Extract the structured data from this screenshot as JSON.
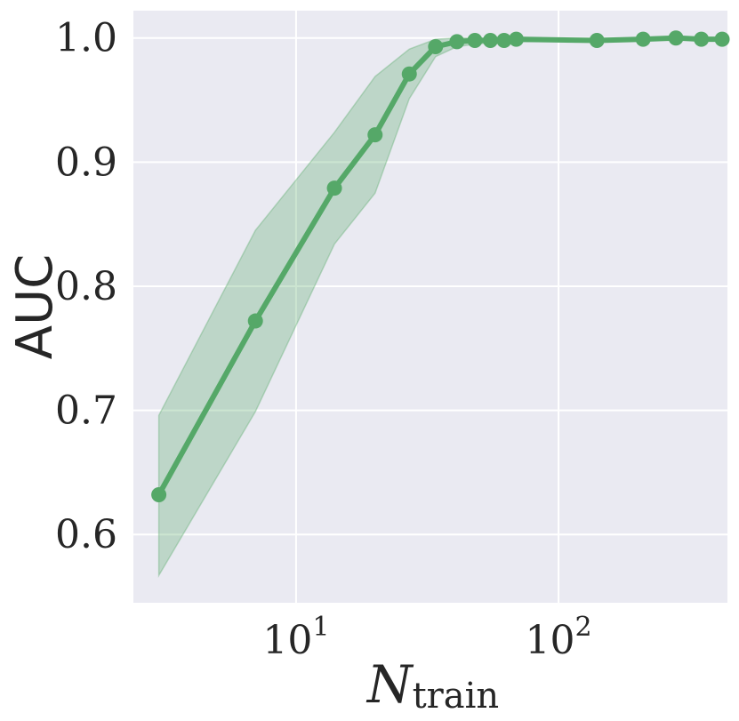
{
  "chart_data": {
    "type": "line",
    "title": "",
    "xlabel": "N",
    "xlabel_subscript": "train",
    "ylabel": "AUC",
    "xscale": "log",
    "xlim": [
      2.4,
      440
    ],
    "ylim": [
      0.545,
      1.022
    ],
    "grid": true,
    "legend": "none",
    "colors": {
      "background": "#eaeaf2",
      "grid": "#ffffff",
      "line": "#55a868",
      "band": "#55a868"
    },
    "x_ticks": [
      {
        "base": "10",
        "exp": "1",
        "value": 10
      },
      {
        "base": "10",
        "exp": "2",
        "value": 100
      }
    ],
    "y_ticks": [
      {
        "label": "0.6",
        "value": 0.6
      },
      {
        "label": "0.7",
        "value": 0.7
      },
      {
        "label": "0.8",
        "value": 0.8
      },
      {
        "label": "0.9",
        "value": 0.9
      },
      {
        "label": "1.0",
        "value": 1.0
      }
    ],
    "series": [
      {
        "x": [
          3,
          7,
          14,
          20,
          27,
          34,
          41,
          48,
          55,
          62,
          69,
          140,
          210,
          280,
          350,
          420
        ],
        "y": [
          0.632,
          0.772,
          0.879,
          0.922,
          0.971,
          0.993,
          0.997,
          0.998,
          0.998,
          0.998,
          0.999,
          0.998,
          0.999,
          1.0,
          0.999,
          0.999
        ],
        "lower": [
          0.567,
          0.699,
          0.834,
          0.875,
          0.951,
          0.985,
          0.993,
          0.995,
          0.996,
          0.996,
          0.997,
          0.997,
          0.998,
          0.999,
          0.998,
          0.998
        ],
        "upper": [
          0.696,
          0.845,
          0.924,
          0.969,
          0.991,
          0.999,
          1.0,
          1.0,
          1.0,
          1.0,
          1.0,
          0.999,
          1.0,
          1.0,
          1.0,
          1.0
        ]
      }
    ]
  }
}
